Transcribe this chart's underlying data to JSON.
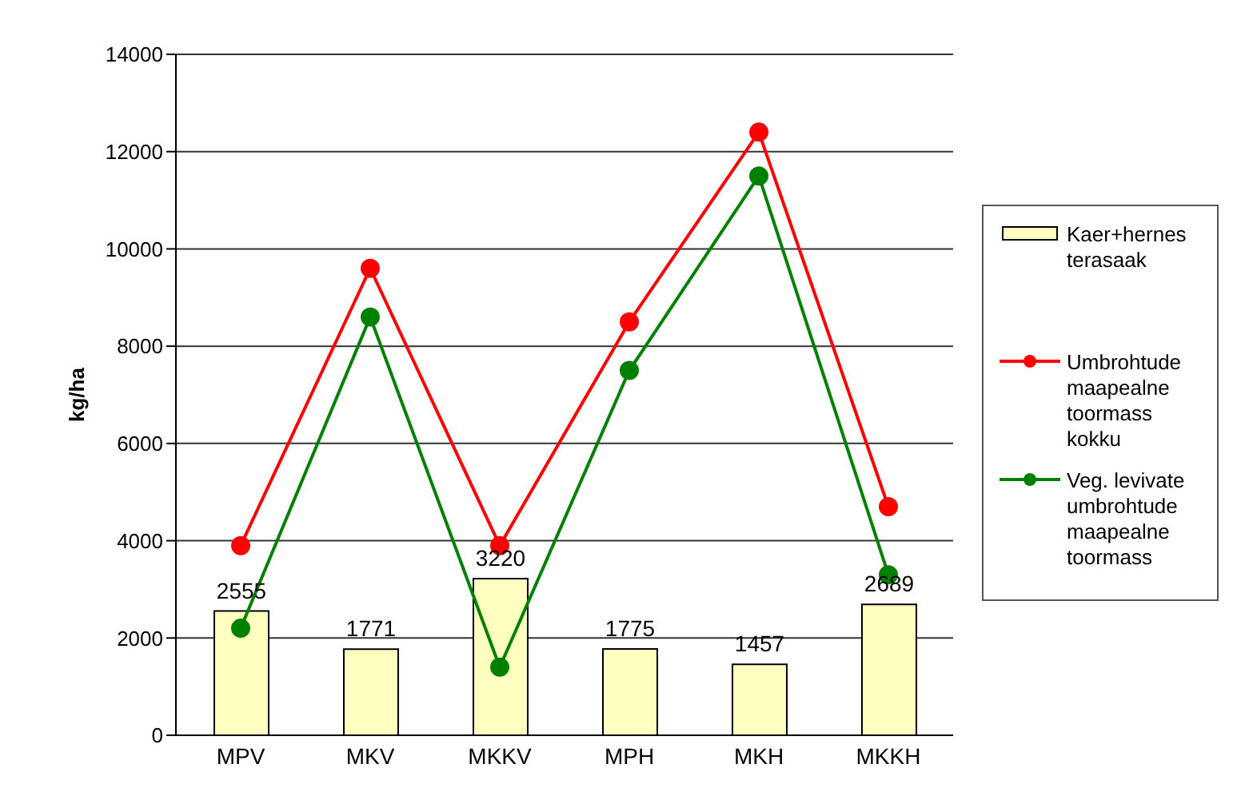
{
  "chart_data": {
    "type": "bar",
    "ylabel": "kg/ha",
    "categories": [
      "MPV",
      "MKV",
      "MKKV",
      "MPH",
      "MKH",
      "MKKH"
    ],
    "series": [
      {
        "name": "Kaer+hernes terasaak",
        "color": "#ffffc0",
        "values": [
          2555,
          1771,
          3220,
          1775,
          1457,
          2689
        ],
        "value_labels": [
          "2555",
          "1771",
          "3220",
          "1775",
          "1457",
          "2689"
        ]
      },
      {
        "name": "Umbrohtude maapealne toormass kokku",
        "type": "line",
        "color": "#ff0000",
        "values": [
          3900,
          9600,
          3900,
          8500,
          12400,
          4700
        ]
      },
      {
        "name": "Veg. levivate umbrohtude maapealne toormass",
        "type": "line",
        "color": "#008000",
        "values": [
          2200,
          8600,
          1400,
          7500,
          11500,
          3300
        ]
      }
    ],
    "ylim": [
      0,
      14000
    ],
    "yticks": [
      0,
      2000,
      4000,
      6000,
      8000,
      10000,
      12000,
      14000
    ],
    "grid": "y",
    "legend": "right",
    "marker": "circle"
  }
}
